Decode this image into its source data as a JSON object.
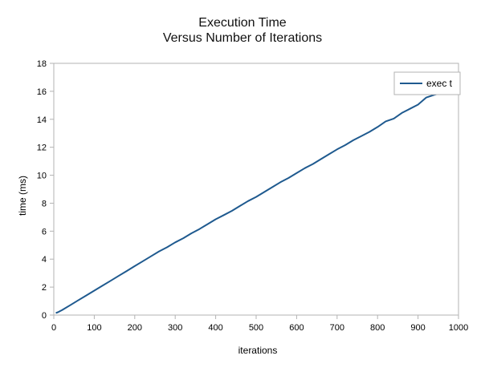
{
  "chart_data": {
    "type": "line",
    "title": "Execution Time",
    "subtitle": "Versus Number of Iterations",
    "xlabel": "iterations",
    "ylabel": "time (ms)",
    "xlim": [
      0,
      1000
    ],
    "ylim": [
      0,
      18
    ],
    "xticks": [
      0,
      100,
      200,
      300,
      400,
      500,
      600,
      700,
      800,
      900,
      1000
    ],
    "yticks": [
      0,
      2,
      4,
      6,
      8,
      10,
      12,
      14,
      16,
      18
    ],
    "grid": false,
    "legend_position": "top-right",
    "series": [
      {
        "name": "exec t",
        "color": "#1f5a8f",
        "points": [
          [
            5,
            0.15
          ],
          [
            10,
            0.2
          ],
          [
            20,
            0.35
          ],
          [
            40,
            0.7
          ],
          [
            60,
            1.05
          ],
          [
            80,
            1.4
          ],
          [
            100,
            1.75
          ],
          [
            120,
            2.1
          ],
          [
            140,
            2.45
          ],
          [
            160,
            2.8
          ],
          [
            180,
            3.15
          ],
          [
            200,
            3.5
          ],
          [
            220,
            3.85
          ],
          [
            240,
            4.2
          ],
          [
            260,
            4.55
          ],
          [
            280,
            4.85
          ],
          [
            300,
            5.2
          ],
          [
            320,
            5.5
          ],
          [
            340,
            5.85
          ],
          [
            360,
            6.15
          ],
          [
            380,
            6.5
          ],
          [
            400,
            6.85
          ],
          [
            420,
            7.15
          ],
          [
            440,
            7.45
          ],
          [
            460,
            7.8
          ],
          [
            480,
            8.15
          ],
          [
            500,
            8.45
          ],
          [
            520,
            8.8
          ],
          [
            540,
            9.15
          ],
          [
            560,
            9.5
          ],
          [
            580,
            9.8
          ],
          [
            600,
            10.15
          ],
          [
            620,
            10.5
          ],
          [
            640,
            10.8
          ],
          [
            660,
            11.15
          ],
          [
            680,
            11.5
          ],
          [
            700,
            11.85
          ],
          [
            720,
            12.15
          ],
          [
            740,
            12.5
          ],
          [
            760,
            12.8
          ],
          [
            780,
            13.1
          ],
          [
            800,
            13.45
          ],
          [
            820,
            13.85
          ],
          [
            840,
            14.05
          ],
          [
            860,
            14.45
          ],
          [
            880,
            14.75
          ],
          [
            900,
            15.05
          ],
          [
            920,
            15.55
          ],
          [
            940,
            15.75
          ],
          [
            960,
            15.9
          ]
        ]
      }
    ]
  }
}
